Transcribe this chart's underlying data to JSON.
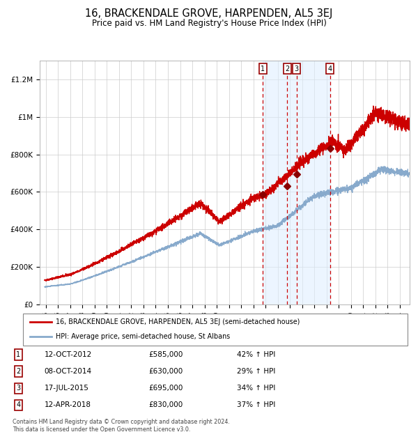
{
  "title": "16, BRACKENDALE GROVE, HARPENDEN, AL5 3EJ",
  "subtitle": "Price paid vs. HM Land Registry's House Price Index (HPI)",
  "legend_line1": "16, BRACKENDALE GROVE, HARPENDEN, AL5 3EJ (semi-detached house)",
  "legend_line2": "HPI: Average price, semi-detached house, St Albans",
  "footnote1": "Contains HM Land Registry data © Crown copyright and database right 2024.",
  "footnote2": "This data is licensed under the Open Government Licence v3.0.",
  "transactions": [
    {
      "num": 1,
      "date": "12-OCT-2012",
      "price": "£585,000",
      "pct": "42%",
      "dir": "↑"
    },
    {
      "num": 2,
      "date": "08-OCT-2014",
      "price": "£630,000",
      "pct": "29%",
      "dir": "↑"
    },
    {
      "num": 3,
      "date": "17-JUL-2015",
      "price": "£695,000",
      "pct": "34%",
      "dir": "↑"
    },
    {
      "num": 4,
      "date": "12-APR-2018",
      "price": "£830,000",
      "pct": "37%",
      "dir": "↑"
    }
  ],
  "transaction_dates_decimal": [
    2012.78,
    2014.77,
    2015.54,
    2018.28
  ],
  "transaction_prices": [
    585000,
    630000,
    695000,
    830000
  ],
  "red_line_color": "#cc0000",
  "blue_line_color": "#88aacc",
  "shade_color": "#ddeeff",
  "dashed_color": "#cc0000",
  "background_color": "#ffffff",
  "grid_color": "#cccccc",
  "title_fontsize": 10.5,
  "subtitle_fontsize": 8.5,
  "yticks": [
    0,
    200000,
    400000,
    600000,
    800000,
    1000000,
    1200000
  ],
  "ylabels": [
    "£0",
    "£200K",
    "£400K",
    "£600K",
    "£800K",
    "£1M",
    "£1.2M"
  ],
  "ylim": [
    0,
    1300000
  ],
  "xstart": 1994.5,
  "xend": 2024.8
}
